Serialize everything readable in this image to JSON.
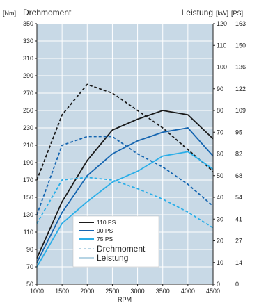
{
  "chart_data": {
    "type": "line",
    "title_left": "Drehmoment",
    "title_right": "Leistung",
    "unit_left": "[Nm]",
    "unit_right_kw": "[kW]",
    "unit_right_ps": "[PS]",
    "xlabel": "RPM",
    "x_ticks": [
      1000,
      1500,
      2000,
      2500,
      3000,
      3500,
      4000,
      4500
    ],
    "xlim": [
      1000,
      4500
    ],
    "ylim_left": [
      50,
      350
    ],
    "y_ticks_left": [
      50,
      70,
      90,
      110,
      130,
      150,
      170,
      190,
      210,
      230,
      250,
      270,
      290,
      310,
      330,
      350
    ],
    "ylim_right_kw": [
      0,
      120
    ],
    "y_ticks_right_kw": [
      0,
      10,
      20,
      30,
      40,
      50,
      60,
      70,
      80,
      90,
      100,
      110,
      120
    ],
    "y_ticks_right_ps": [
      0,
      14,
      27,
      41,
      54,
      68,
      82,
      95,
      109,
      122,
      136,
      150,
      163
    ],
    "grid": true,
    "background": "#c8d9e6",
    "legend_position": "bottom-center",
    "series": [
      {
        "name": "110 PS",
        "color": "#1a1a1a",
        "torque": {
          "x": [
            1000,
            1500,
            2000,
            2500,
            3000,
            3500,
            4000,
            4500
          ],
          "y": [
            170,
            245,
            280,
            270,
            250,
            230,
            205,
            180
          ]
        },
        "power": {
          "x": [
            1000,
            1500,
            2000,
            2500,
            3000,
            3500,
            4000,
            4500
          ],
          "y": [
            12,
            38,
            57,
            71,
            76,
            80,
            78,
            67
          ]
        }
      },
      {
        "name": "90 PS",
        "color": "#1565b0",
        "torque": {
          "x": [
            1000,
            1500,
            2000,
            2500,
            3000,
            3500,
            4000,
            4500
          ],
          "y": [
            130,
            210,
            220,
            220,
            200,
            185,
            165,
            140
          ]
        },
        "power": {
          "x": [
            1000,
            1500,
            2000,
            2500,
            3000,
            3500,
            4000,
            4500
          ],
          "y": [
            10,
            33,
            50,
            60,
            66,
            70,
            72,
            59
          ]
        }
      },
      {
        "name": "75 PS",
        "color": "#2aaee8",
        "torque": {
          "x": [
            1000,
            1500,
            2000,
            2500,
            3000,
            3500,
            4000,
            4500
          ],
          "y": [
            120,
            170,
            173,
            170,
            160,
            148,
            133,
            115
          ]
        },
        "power": {
          "x": [
            1000,
            1500,
            2000,
            2500,
            3000,
            3500,
            4000,
            4500
          ],
          "y": [
            8,
            28,
            38,
            47,
            52,
            59,
            61,
            53
          ]
        }
      }
    ],
    "legend_extra": [
      {
        "label": "Drehmoment",
        "style": "dashed"
      },
      {
        "label": "Leistung",
        "style": "solid"
      }
    ]
  }
}
